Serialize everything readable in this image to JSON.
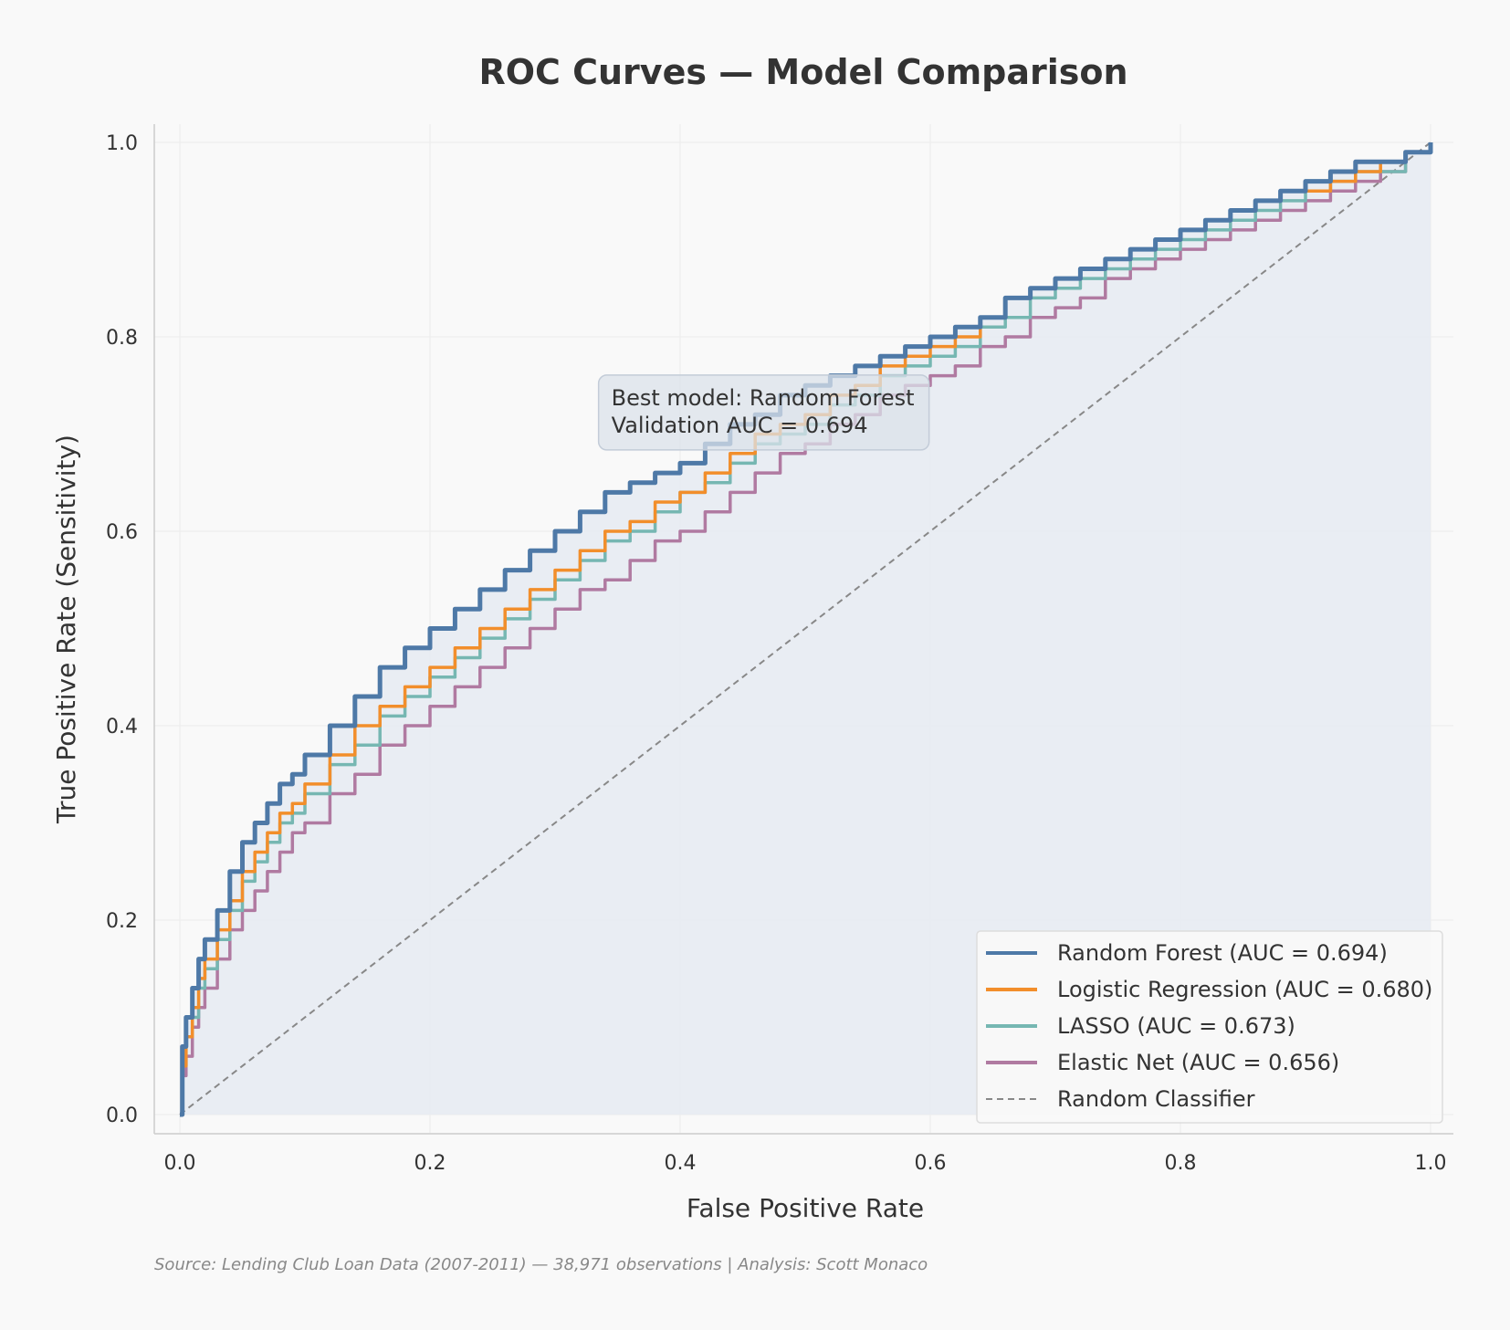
{
  "chart_data": {
    "type": "line",
    "title": "ROC Curves — Model Comparison",
    "xlabel": "False Positive Rate",
    "ylabel": "True Positive Rate (Sensitivity)",
    "xlim": [
      0,
      1
    ],
    "ylim": [
      0,
      1
    ],
    "xticks": [
      "0.0",
      "0.2",
      "0.4",
      "0.6",
      "0.8",
      "1.0"
    ],
    "yticks": [
      "0.0",
      "0.2",
      "0.4",
      "0.6",
      "0.8",
      "1.0"
    ],
    "grid": true,
    "legend_position": "lower-right",
    "series": [
      {
        "name": "Random Forest (AUC = 0.694)",
        "color": "#4e79a7",
        "x": [
          0,
          0.002,
          0.005,
          0.01,
          0.015,
          0.02,
          0.03,
          0.04,
          0.05,
          0.06,
          0.07,
          0.08,
          0.09,
          0.1,
          0.12,
          0.14,
          0.16,
          0.18,
          0.2,
          0.22,
          0.24,
          0.26,
          0.28,
          0.3,
          0.32,
          0.34,
          0.36,
          0.38,
          0.4,
          0.42,
          0.44,
          0.46,
          0.48,
          0.5,
          0.52,
          0.54,
          0.56,
          0.58,
          0.6,
          0.62,
          0.64,
          0.66,
          0.68,
          0.7,
          0.72,
          0.74,
          0.76,
          0.78,
          0.8,
          0.82,
          0.84,
          0.86,
          0.88,
          0.9,
          0.92,
          0.94,
          0.96,
          0.98,
          1.0
        ],
        "y": [
          0,
          0.07,
          0.1,
          0.13,
          0.16,
          0.18,
          0.21,
          0.25,
          0.28,
          0.3,
          0.32,
          0.34,
          0.35,
          0.37,
          0.4,
          0.43,
          0.46,
          0.48,
          0.5,
          0.52,
          0.54,
          0.56,
          0.58,
          0.6,
          0.62,
          0.64,
          0.65,
          0.66,
          0.67,
          0.69,
          0.71,
          0.72,
          0.74,
          0.75,
          0.76,
          0.77,
          0.78,
          0.79,
          0.8,
          0.81,
          0.82,
          0.84,
          0.85,
          0.86,
          0.87,
          0.88,
          0.89,
          0.9,
          0.91,
          0.92,
          0.93,
          0.94,
          0.95,
          0.96,
          0.97,
          0.98,
          0.98,
          0.99,
          1.0
        ]
      },
      {
        "name": "Logistic Regression (AUC = 0.680)",
        "color": "#f28e2b",
        "x": [
          0,
          0.002,
          0.005,
          0.01,
          0.015,
          0.02,
          0.03,
          0.04,
          0.05,
          0.06,
          0.07,
          0.08,
          0.09,
          0.1,
          0.12,
          0.14,
          0.16,
          0.18,
          0.2,
          0.22,
          0.24,
          0.26,
          0.28,
          0.3,
          0.32,
          0.34,
          0.36,
          0.38,
          0.4,
          0.42,
          0.44,
          0.46,
          0.48,
          0.5,
          0.52,
          0.54,
          0.56,
          0.58,
          0.6,
          0.62,
          0.64,
          0.66,
          0.68,
          0.7,
          0.72,
          0.74,
          0.76,
          0.78,
          0.8,
          0.82,
          0.84,
          0.86,
          0.88,
          0.9,
          0.92,
          0.94,
          0.96,
          0.98,
          1.0
        ],
        "y": [
          0,
          0.05,
          0.08,
          0.11,
          0.14,
          0.16,
          0.19,
          0.22,
          0.25,
          0.27,
          0.29,
          0.31,
          0.32,
          0.34,
          0.37,
          0.4,
          0.42,
          0.44,
          0.46,
          0.48,
          0.5,
          0.52,
          0.54,
          0.56,
          0.58,
          0.6,
          0.61,
          0.63,
          0.64,
          0.66,
          0.68,
          0.7,
          0.71,
          0.72,
          0.74,
          0.75,
          0.77,
          0.78,
          0.79,
          0.8,
          0.82,
          0.84,
          0.85,
          0.86,
          0.87,
          0.88,
          0.89,
          0.9,
          0.91,
          0.92,
          0.93,
          0.94,
          0.95,
          0.95,
          0.96,
          0.97,
          0.98,
          0.99,
          1.0
        ]
      },
      {
        "name": "LASSO (AUC = 0.673)",
        "color": "#76b7b2",
        "x": [
          0,
          0.002,
          0.005,
          0.01,
          0.015,
          0.02,
          0.03,
          0.04,
          0.05,
          0.06,
          0.07,
          0.08,
          0.09,
          0.1,
          0.12,
          0.14,
          0.16,
          0.18,
          0.2,
          0.22,
          0.24,
          0.26,
          0.28,
          0.3,
          0.32,
          0.34,
          0.36,
          0.38,
          0.4,
          0.42,
          0.44,
          0.46,
          0.48,
          0.5,
          0.52,
          0.54,
          0.56,
          0.58,
          0.6,
          0.62,
          0.64,
          0.66,
          0.68,
          0.7,
          0.72,
          0.74,
          0.76,
          0.78,
          0.8,
          0.82,
          0.84,
          0.86,
          0.88,
          0.9,
          0.92,
          0.94,
          0.96,
          0.98,
          1.0
        ],
        "y": [
          0,
          0.05,
          0.08,
          0.1,
          0.13,
          0.15,
          0.18,
          0.21,
          0.24,
          0.26,
          0.28,
          0.3,
          0.31,
          0.33,
          0.36,
          0.38,
          0.41,
          0.43,
          0.45,
          0.47,
          0.49,
          0.51,
          0.53,
          0.55,
          0.57,
          0.59,
          0.6,
          0.62,
          0.64,
          0.65,
          0.67,
          0.69,
          0.7,
          0.71,
          0.73,
          0.74,
          0.76,
          0.77,
          0.78,
          0.79,
          0.81,
          0.82,
          0.84,
          0.85,
          0.86,
          0.87,
          0.88,
          0.89,
          0.9,
          0.91,
          0.92,
          0.93,
          0.94,
          0.95,
          0.96,
          0.97,
          0.97,
          0.99,
          1.0
        ]
      },
      {
        "name": "Elastic Net (AUC = 0.656)",
        "color": "#b07aa1",
        "x": [
          0,
          0.002,
          0.005,
          0.01,
          0.015,
          0.02,
          0.03,
          0.04,
          0.05,
          0.06,
          0.07,
          0.08,
          0.09,
          0.1,
          0.12,
          0.14,
          0.16,
          0.18,
          0.2,
          0.22,
          0.24,
          0.26,
          0.28,
          0.3,
          0.32,
          0.34,
          0.36,
          0.38,
          0.4,
          0.42,
          0.44,
          0.46,
          0.48,
          0.5,
          0.52,
          0.54,
          0.56,
          0.58,
          0.6,
          0.62,
          0.64,
          0.66,
          0.68,
          0.7,
          0.72,
          0.74,
          0.76,
          0.78,
          0.8,
          0.82,
          0.84,
          0.86,
          0.88,
          0.9,
          0.92,
          0.94,
          0.96,
          0.98,
          1.0
        ],
        "y": [
          0,
          0.04,
          0.06,
          0.09,
          0.11,
          0.13,
          0.16,
          0.19,
          0.21,
          0.23,
          0.25,
          0.27,
          0.29,
          0.3,
          0.33,
          0.35,
          0.38,
          0.4,
          0.42,
          0.44,
          0.46,
          0.48,
          0.5,
          0.52,
          0.54,
          0.55,
          0.57,
          0.59,
          0.6,
          0.62,
          0.64,
          0.66,
          0.68,
          0.69,
          0.71,
          0.72,
          0.74,
          0.75,
          0.76,
          0.77,
          0.79,
          0.8,
          0.82,
          0.83,
          0.84,
          0.86,
          0.87,
          0.88,
          0.89,
          0.9,
          0.91,
          0.92,
          0.93,
          0.94,
          0.95,
          0.96,
          0.97,
          0.99,
          1.0
        ]
      },
      {
        "name": "Random Classifier",
        "color": "#888888",
        "dashed": true,
        "x": [
          0,
          1
        ],
        "y": [
          0,
          1
        ]
      }
    ],
    "annotation": {
      "lines": [
        "Best model: Random Forest",
        "Validation AUC = 0.694"
      ],
      "x": 0.345,
      "y": 0.755
    },
    "source": "Source: Lending Club Loan Data (2007-2011) — 38,971 observations | Analysis: Scott Monaco",
    "colors": {
      "background": "#f9f9f9",
      "grid": "#ececec",
      "axis": "#cccccc",
      "fill": "#e6ebf2",
      "annotation_bg": "#dbe2ea"
    }
  }
}
